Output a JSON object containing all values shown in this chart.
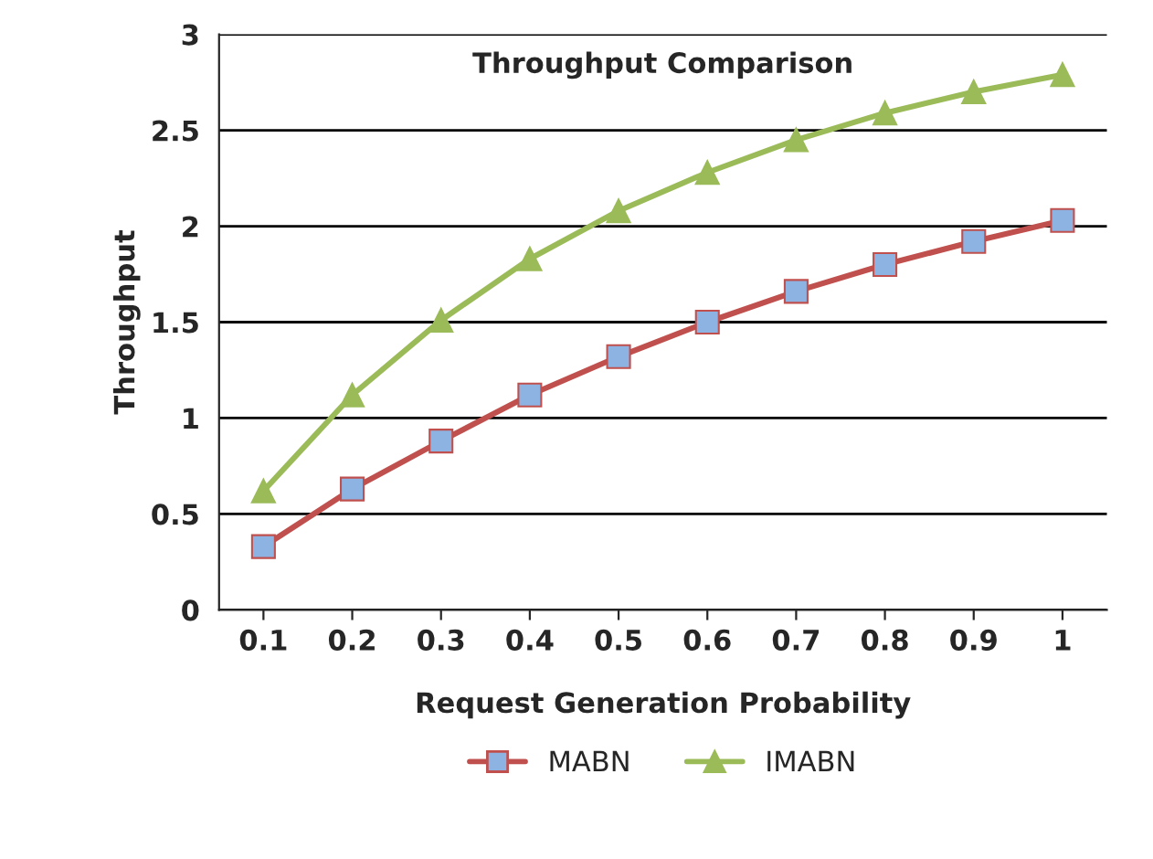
{
  "chart_data": {
    "type": "line",
    "title": "Throughput Comparison",
    "xlabel": "Request Generation Probability",
    "ylabel": "Throughput",
    "categories": [
      "0.1",
      "0.2",
      "0.3",
      "0.4",
      "0.5",
      "0.6",
      "0.7",
      "0.8",
      "0.9",
      "1"
    ],
    "series": [
      {
        "name": "MABN",
        "color": "#c0504d",
        "marker": "square",
        "values": [
          0.33,
          0.63,
          0.88,
          1.12,
          1.32,
          1.5,
          1.66,
          1.8,
          1.92,
          2.03
        ]
      },
      {
        "name": "IMABN",
        "color": "#9bbb59",
        "marker": "triangle",
        "values": [
          0.62,
          1.12,
          1.51,
          1.83,
          2.08,
          2.28,
          2.45,
          2.59,
          2.7,
          2.79
        ]
      }
    ],
    "ylim": [
      0,
      3
    ],
    "yticks": [
      0,
      0.5,
      1,
      1.5,
      2,
      2.5,
      3
    ],
    "grid": "y",
    "legend": "bottom"
  }
}
